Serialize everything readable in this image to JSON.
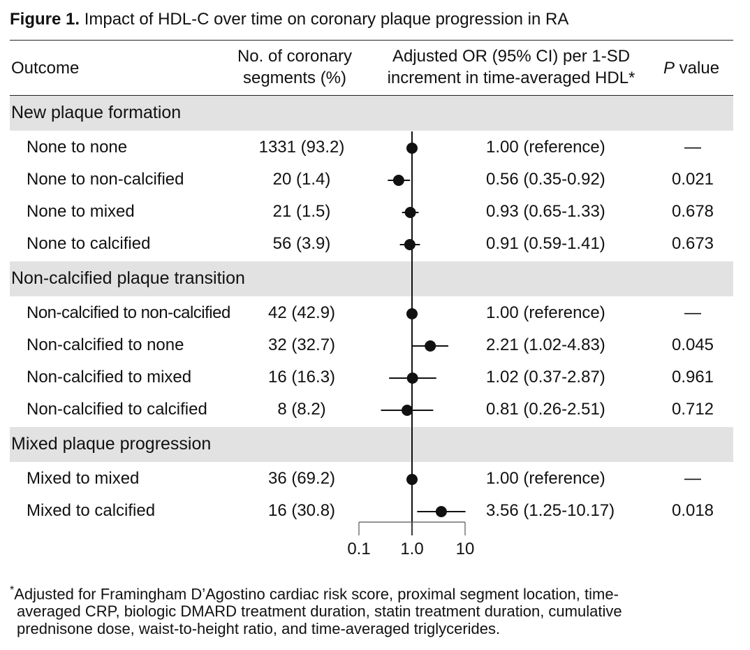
{
  "figure": {
    "title_bold": "Figure 1.",
    "title_rest": " Impact of HDL-C over time on coronary plaque progression in RA"
  },
  "headers": {
    "outcome": "Outcome",
    "segments_line1": "No. of coronary",
    "segments_line2": "segments (%)",
    "or_line1": "Adjusted OR (95% CI) per 1-SD",
    "or_line2": "increment in time-averaged HDL*",
    "p_italic": "P",
    "p_rest": " value"
  },
  "sections": [
    {
      "label": "New plaque formation"
    },
    {
      "label": "Non-calcified plaque transition"
    },
    {
      "label": "Mixed plaque progression"
    }
  ],
  "rows": [
    {
      "outcome": "None to none",
      "segments": "1331 (93.2)",
      "estimate": "1.00 (reference)",
      "p": "—"
    },
    {
      "outcome": "None to non-calcified",
      "segments": "20 (1.4)",
      "estimate": "0.56 (0.35-0.92)",
      "p": "0.021"
    },
    {
      "outcome": "None to mixed",
      "segments": "21 (1.5)",
      "estimate": "0.93 (0.65-1.33)",
      "p": "0.678"
    },
    {
      "outcome": "None to calcified",
      "segments": "56 (3.9)",
      "estimate": "0.91 (0.59-1.41)",
      "p": "0.673"
    },
    {
      "outcome": "Non-calcified to non-calcified",
      "segments": "42 (42.9)",
      "estimate": "1.00 (reference)",
      "p": "—"
    },
    {
      "outcome": "Non-calcified to none",
      "segments": "32 (32.7)",
      "estimate": "2.21 (1.02-4.83)",
      "p": "0.045"
    },
    {
      "outcome": "Non-calcified to mixed",
      "segments": "16 (16.3)",
      "estimate": "1.02 (0.37-2.87)",
      "p": "0.961"
    },
    {
      "outcome": "Non-calcified to calcified",
      "segments": "8 (8.2)",
      "estimate": "0.81 (0.26-2.51)",
      "p": "0.712"
    },
    {
      "outcome": "Mixed to mixed",
      "segments": "36 (69.2)",
      "estimate": "1.00 (reference)",
      "p": "—"
    },
    {
      "outcome": "Mixed to calcified",
      "segments": "16 (30.8)",
      "estimate": "3.56 (1.25-10.17)",
      "p": "0.018"
    }
  ],
  "footnote": {
    "marker": "*",
    "line1": "Adjusted for Framingham D’Agostino cardiac risk score, proximal segment location, time-",
    "line2": "averaged CRP, biologic DMARD treatment duration, statin treatment duration, cumulative",
    "line3": "prednisone dose, waist-to-height ratio, and time-averaged triglycerides."
  },
  "chart_data": {
    "type": "forest",
    "x_scale": "log",
    "xlim": [
      0.1,
      10
    ],
    "x_ticks": [
      0.1,
      1.0,
      10
    ],
    "x_tick_labels": [
      "0.1",
      "1.0",
      "10"
    ],
    "reference_line": 1.0,
    "points": [
      {
        "or": 1.0,
        "lo": 1.0,
        "hi": 1.0
      },
      {
        "or": 0.56,
        "lo": 0.35,
        "hi": 0.92
      },
      {
        "or": 0.93,
        "lo": 0.65,
        "hi": 1.33
      },
      {
        "or": 0.91,
        "lo": 0.59,
        "hi": 1.41
      },
      {
        "or": 1.0,
        "lo": 1.0,
        "hi": 1.0
      },
      {
        "or": 2.21,
        "lo": 1.02,
        "hi": 4.83
      },
      {
        "or": 1.02,
        "lo": 0.37,
        "hi": 2.87
      },
      {
        "or": 0.81,
        "lo": 0.26,
        "hi": 2.51
      },
      {
        "or": 1.0,
        "lo": 1.0,
        "hi": 1.0
      },
      {
        "or": 3.56,
        "lo": 1.25,
        "hi": 10.17
      }
    ]
  }
}
